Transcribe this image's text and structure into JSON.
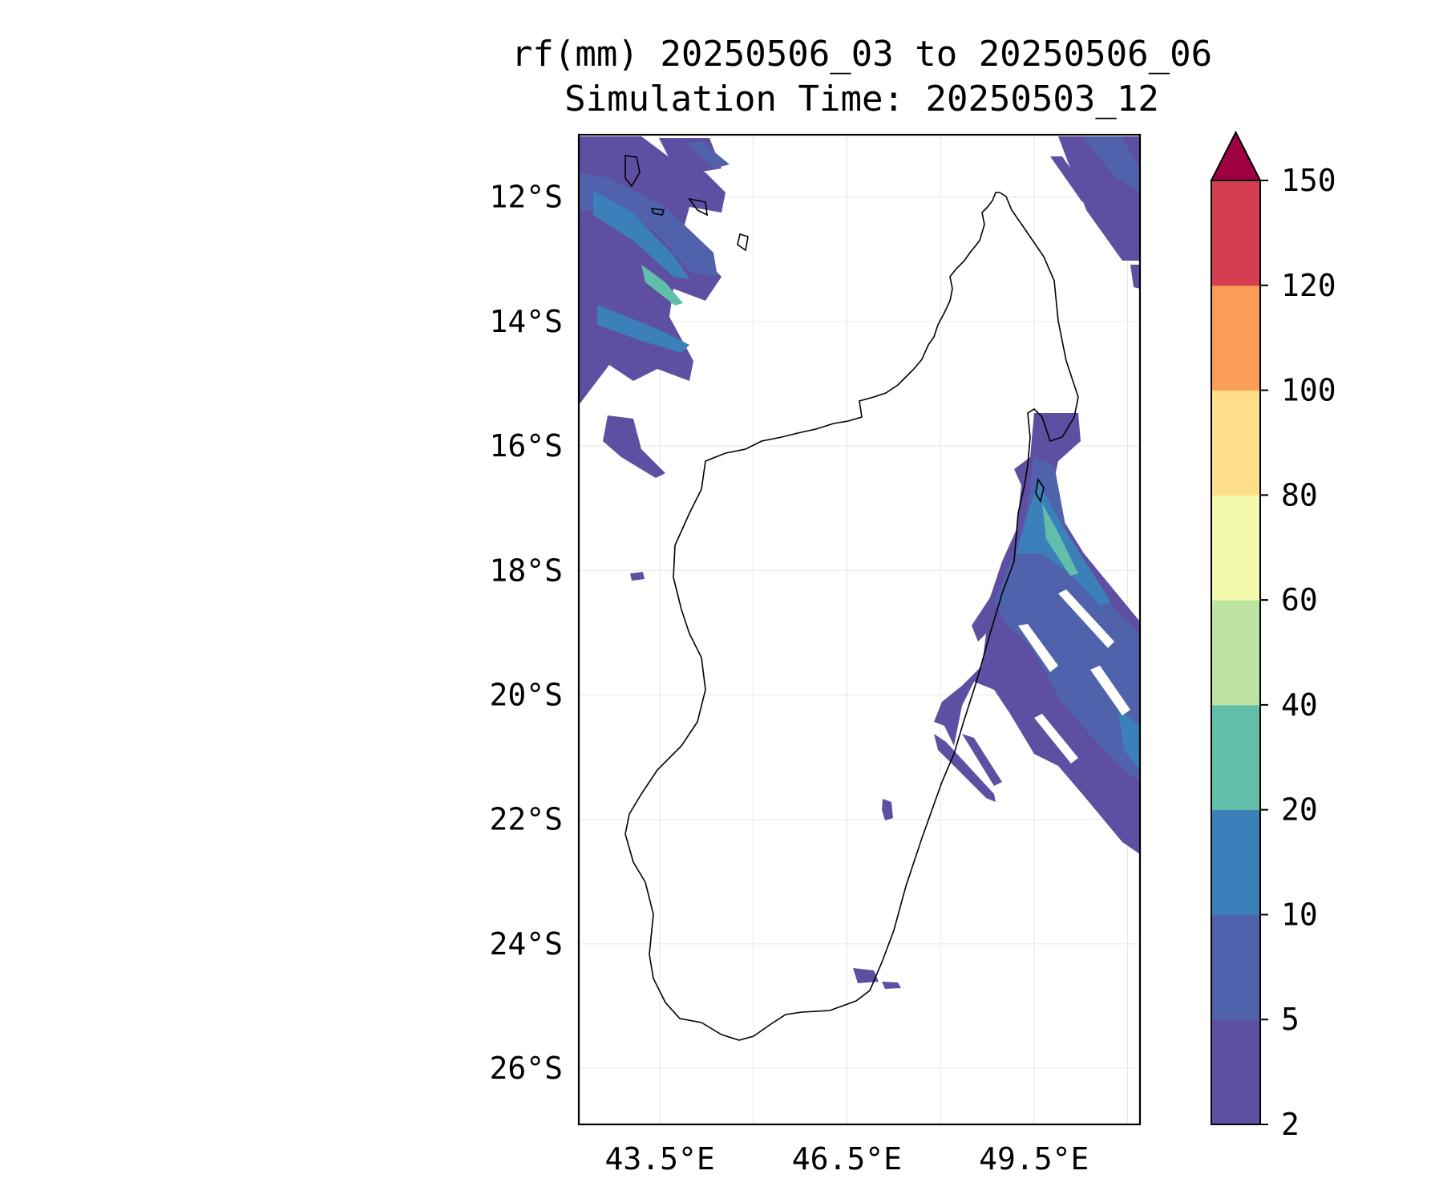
{
  "title": {
    "line1": "rf(mm) 20250506_03 to 20250506_06",
    "line2": "Simulation Time: 20250503_12"
  },
  "map": {
    "region": "Madagascar",
    "extent": {
      "lon_min": 42.2,
      "lon_max": 51.2,
      "lat_min": -26.9,
      "lat_max": -11.0
    },
    "gridlines": true,
    "coastline_color": "#000000",
    "lat_ticks": [
      {
        "value": -12,
        "label": "12°S"
      },
      {
        "value": -14,
        "label": "14°S"
      },
      {
        "value": -16,
        "label": "16°S"
      },
      {
        "value": -18,
        "label": "18°S"
      },
      {
        "value": -20,
        "label": "20°S"
      },
      {
        "value": -22,
        "label": "22°S"
      },
      {
        "value": -24,
        "label": "24°S"
      },
      {
        "value": -26,
        "label": "26°S"
      }
    ],
    "lon_ticks": [
      {
        "value": 43.5,
        "label": "43.5°E"
      },
      {
        "value": 46.5,
        "label": "46.5°E"
      },
      {
        "value": 49.5,
        "label": "49.5°E"
      }
    ]
  },
  "colorbar": {
    "levels": [
      "2",
      "5",
      "10",
      "20",
      "40",
      "60",
      "80",
      "100",
      "120",
      "150"
    ],
    "colors": [
      "#5e4fa2",
      "#4f62ab",
      "#3b80b9",
      "#61bea9",
      "#bde4a0",
      "#f3faad",
      "#fdde8b",
      "#f99d59",
      "#d53e50"
    ],
    "extend_color": "#9e0142",
    "extend": "max"
  }
}
